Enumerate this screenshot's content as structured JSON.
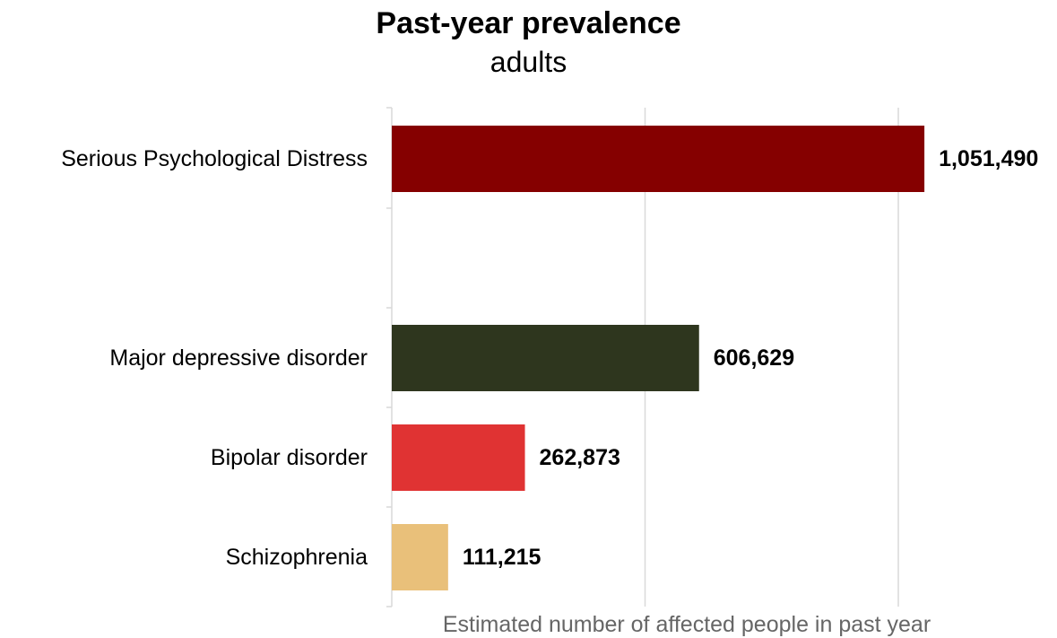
{
  "chart_data": {
    "type": "bar",
    "orientation": "horizontal",
    "title": "Past-year prevalence",
    "subtitle": "adults",
    "xlabel": "Estimated number of affected people in past year",
    "ylabel": "",
    "categories": [
      "Serious Psychological Distress",
      "Major depressive disorder",
      "Bipolar disorder",
      "Schizophrenia"
    ],
    "values": [
      1051490,
      606629,
      262873,
      111215
    ],
    "value_labels": [
      "1,051,490",
      "606,629",
      "262,873",
      "111,215"
    ],
    "colors": [
      "#850000",
      "#2e361e",
      "#e03333",
      "#e9c07a"
    ],
    "xlim": [
      0,
      1100000
    ],
    "grid": true,
    "legend": "none"
  }
}
